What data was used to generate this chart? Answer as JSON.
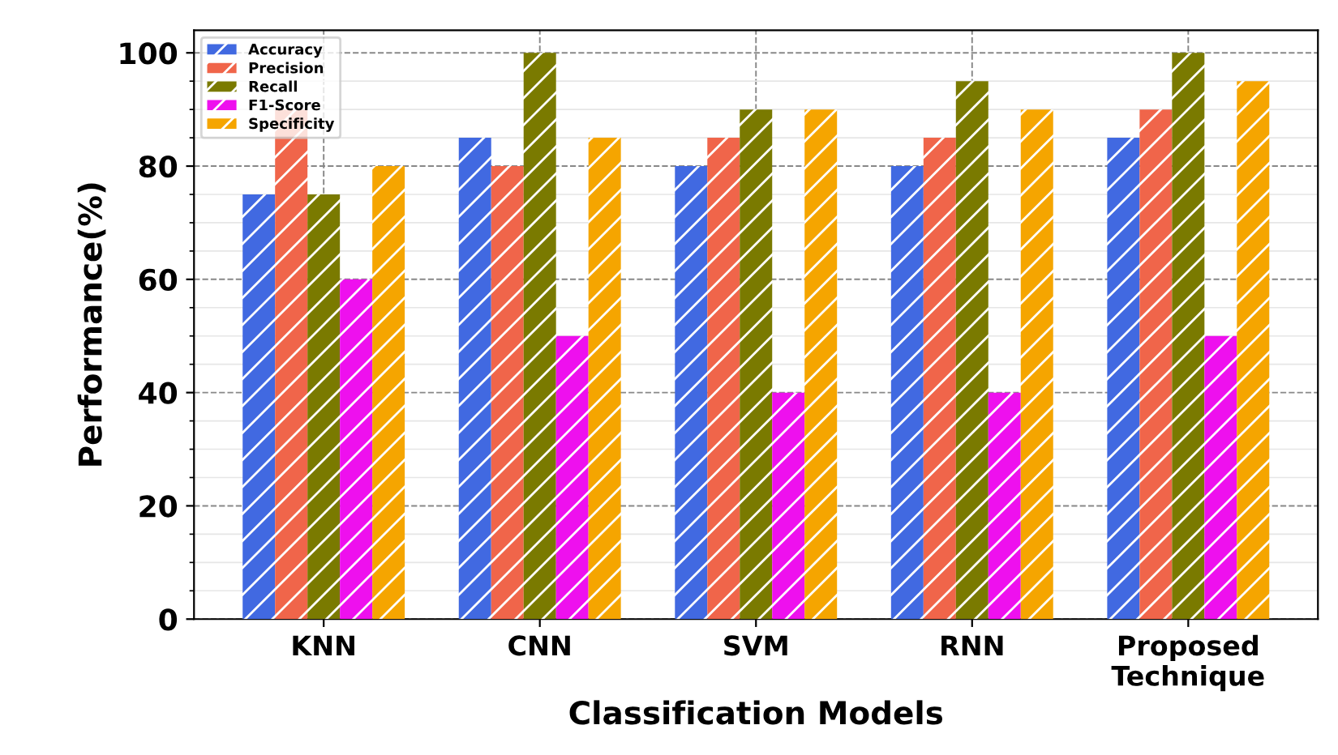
{
  "chart_data": {
    "type": "bar",
    "xlabel": "Classification Models",
    "ylabel": "Performance(%)",
    "categories": [
      "KNN",
      "CNN",
      "SVM",
      "RNN",
      "Proposed\nTechnique"
    ],
    "series": [
      {
        "name": "Accuracy",
        "color": "#4169e1",
        "values": [
          75,
          85,
          80,
          80,
          85
        ]
      },
      {
        "name": "Precision",
        "color": "#f0654a",
        "values": [
          90,
          80,
          85,
          85,
          90
        ]
      },
      {
        "name": "Recall",
        "color": "#7a7a00",
        "values": [
          75,
          100,
          90,
          95,
          100
        ]
      },
      {
        "name": "F1-Score",
        "color": "#ee10ee",
        "values": [
          60,
          50,
          40,
          40,
          50
        ]
      },
      {
        "name": "Specificity",
        "color": "#f5a500",
        "values": [
          80,
          85,
          90,
          90,
          95
        ]
      }
    ],
    "ylim": [
      0,
      104
    ],
    "yticks": [
      0,
      20,
      40,
      60,
      80,
      100
    ],
    "grid": true,
    "legend": "top left"
  }
}
